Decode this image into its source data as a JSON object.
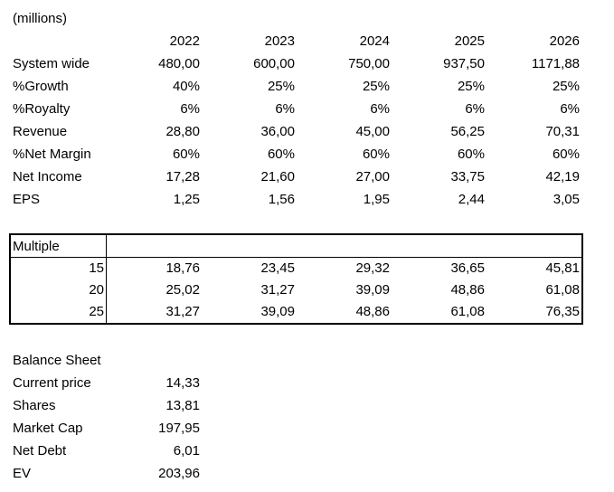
{
  "colors": {
    "text": "#000000",
    "background": "#ffffff",
    "table_border": "#000000"
  },
  "units_label": "(millions)",
  "forecast_table": {
    "years": [
      "2022",
      "2023",
      "2024",
      "2025",
      "2026"
    ],
    "rows": [
      {
        "label": "System wide",
        "values": [
          "480,00",
          "600,00",
          "750,00",
          "937,50",
          "1171,88"
        ]
      },
      {
        "label": "%Growth",
        "values": [
          "40%",
          "25%",
          "25%",
          "25%",
          "25%"
        ]
      },
      {
        "label": "%Royalty",
        "values": [
          "6%",
          "6%",
          "6%",
          "6%",
          "6%"
        ]
      },
      {
        "label": "Revenue",
        "values": [
          "28,80",
          "36,00",
          "45,00",
          "56,25",
          "70,31"
        ]
      },
      {
        "label": "%Net Margin",
        "values": [
          "60%",
          "60%",
          "60%",
          "60%",
          "60%"
        ]
      },
      {
        "label": "Net Income",
        "values": [
          "17,28",
          "21,60",
          "27,00",
          "33,75",
          "42,19"
        ]
      },
      {
        "label": "EPS",
        "values": [
          "1,25",
          "1,56",
          "1,95",
          "2,44",
          "3,05"
        ]
      }
    ]
  },
  "multiple_table": {
    "header": "Multiple",
    "rows": [
      {
        "multiple": "15",
        "values": [
          "18,76",
          "23,45",
          "29,32",
          "36,65",
          "45,81"
        ]
      },
      {
        "multiple": "20",
        "values": [
          "25,02",
          "31,27",
          "39,09",
          "48,86",
          "61,08"
        ]
      },
      {
        "multiple": "25",
        "values": [
          "31,27",
          "39,09",
          "48,86",
          "61,08",
          "76,35"
        ]
      }
    ]
  },
  "balance_sheet": {
    "title": "Balance Sheet",
    "rows": [
      {
        "label": "Current price",
        "value": "14,33"
      },
      {
        "label": "Shares",
        "value": "13,81"
      },
      {
        "label": "Market Cap",
        "value": "197,95"
      },
      {
        "label": "Net Debt",
        "value": "6,01"
      },
      {
        "label": "EV",
        "value": "203,96"
      }
    ]
  }
}
